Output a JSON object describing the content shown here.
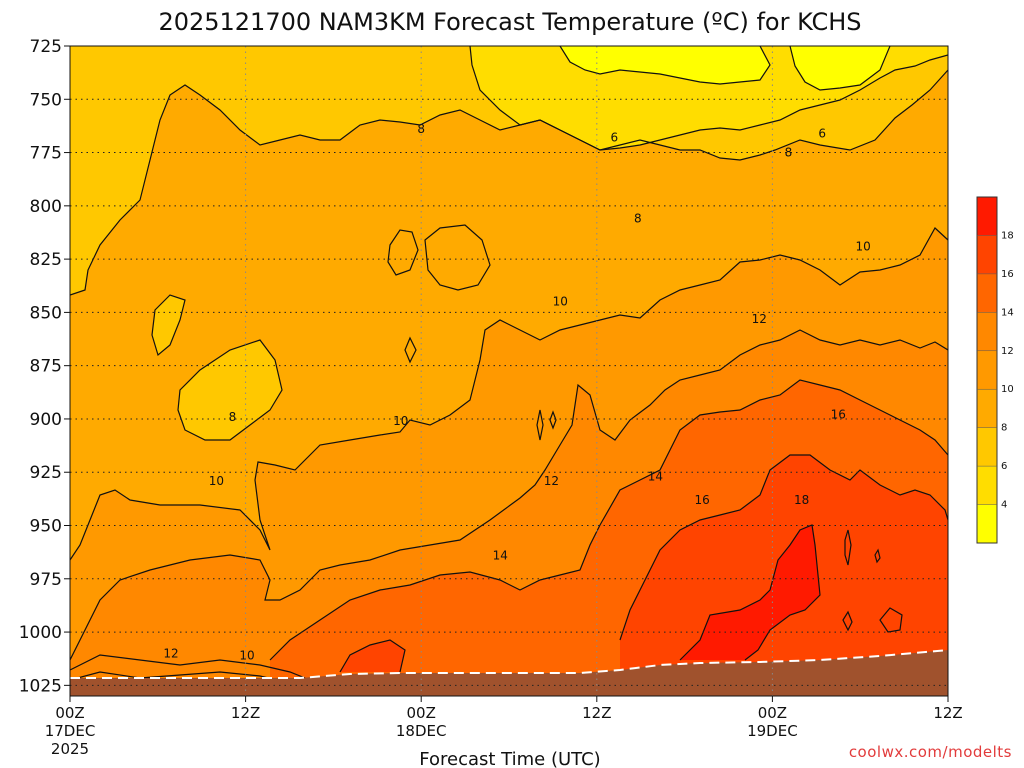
{
  "title": "2025121700 NAM3KM Forecast Temperature (ºC) for KCHS",
  "xlabel": "Forecast Time (UTC)",
  "credit": "coolwx.com/modelts",
  "chart_data": {
    "type": "contour",
    "title": "2025121700 NAM3KM Forecast Temperature (ºC) for KCHS",
    "xlabel": "Forecast Time (UTC)",
    "ylabel": "",
    "x_ticks": [
      {
        "hour": 0,
        "line1": "00Z",
        "line2": "17DEC",
        "line3": "2025"
      },
      {
        "hour": 12,
        "line1": "12Z",
        "line2": "",
        "line3": ""
      },
      {
        "hour": 24,
        "line1": "00Z",
        "line2": "18DEC",
        "line3": ""
      },
      {
        "hour": 36,
        "line1": "12Z",
        "line2": "",
        "line3": ""
      },
      {
        "hour": 48,
        "line1": "00Z",
        "line2": "19DEC",
        "line3": ""
      },
      {
        "hour": 60,
        "line1": "12Z",
        "line2": "",
        "line3": ""
      }
    ],
    "xlim_hours": [
      0,
      60
    ],
    "y_axis": {
      "unit": "hPa",
      "inverted": true,
      "ylim": [
        725,
        1030
      ],
      "ticks": [
        725,
        750,
        775,
        800,
        825,
        850,
        875,
        900,
        925,
        950,
        975,
        1000,
        1025
      ]
    },
    "grid": "dotted",
    "contour_levels": [
      4,
      6,
      8,
      10,
      12,
      14,
      16,
      18
    ],
    "contour_labels": [
      {
        "text": "6",
        "hour": 37.2,
        "pressure": 768
      },
      {
        "text": "6",
        "hour": 51.4,
        "pressure": 766
      },
      {
        "text": "8",
        "hour": 24.0,
        "pressure": 764
      },
      {
        "text": "8",
        "hour": 38.8,
        "pressure": 806
      },
      {
        "text": "8",
        "hour": 49.1,
        "pressure": 775
      },
      {
        "text": "8",
        "hour": 11.1,
        "pressure": 899
      },
      {
        "text": "10",
        "hour": 33.5,
        "pressure": 845
      },
      {
        "text": "10",
        "hour": 54.2,
        "pressure": 819
      },
      {
        "text": "10",
        "hour": 22.6,
        "pressure": 901
      },
      {
        "text": "10",
        "hour": 10.0,
        "pressure": 929
      },
      {
        "text": "10",
        "hour": 12.1,
        "pressure": 1011
      },
      {
        "text": "12",
        "hour": 47.1,
        "pressure": 853
      },
      {
        "text": "12",
        "hour": 32.9,
        "pressure": 929
      },
      {
        "text": "12",
        "hour": 6.9,
        "pressure": 1010
      },
      {
        "text": "14",
        "hour": 29.4,
        "pressure": 964
      },
      {
        "text": "14",
        "hour": 40.0,
        "pressure": 927
      },
      {
        "text": "16",
        "hour": 52.5,
        "pressure": 898
      },
      {
        "text": "16",
        "hour": 43.2,
        "pressure": 938
      },
      {
        "text": "18",
        "hour": 50.0,
        "pressure": 938
      }
    ],
    "colorbar": {
      "ticks": [
        4,
        6,
        8,
        10,
        12,
        14,
        16,
        18
      ],
      "bands": [
        {
          "from": 2,
          "to": 4,
          "color": "#ffff00"
        },
        {
          "from": 4,
          "to": 6,
          "color": "#ffdd00"
        },
        {
          "from": 6,
          "to": 8,
          "color": "#ffc800"
        },
        {
          "from": 8,
          "to": 10,
          "color": "#ffaa00"
        },
        {
          "from": 10,
          "to": 12,
          "color": "#ff9900"
        },
        {
          "from": 12,
          "to": 14,
          "color": "#ff8800"
        },
        {
          "from": 14,
          "to": 16,
          "color": "#ff6600"
        },
        {
          "from": 16,
          "to": 18,
          "color": "#ff4400"
        },
        {
          "from": 18,
          "to": 20,
          "color": "#ff1a00"
        }
      ]
    },
    "ground_color": "#a0522d"
  }
}
